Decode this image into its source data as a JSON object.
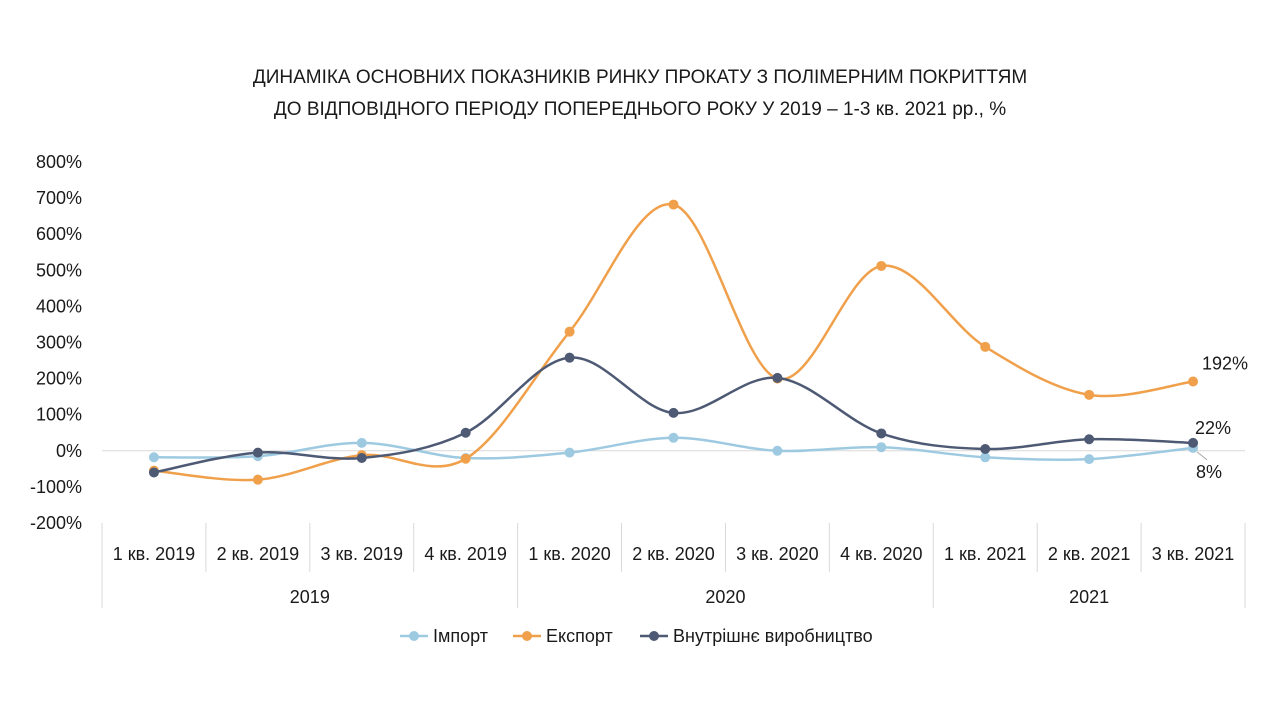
{
  "colors": {
    "import": "#9ecae1",
    "export": "#f0a04b",
    "domestic": "#4e5a74",
    "axis": "#d9d9d9",
    "text": "#1a1a1a"
  },
  "chart_data": {
    "type": "line",
    "smooth": true,
    "title": [
      "ДИНАМІКА ОСНОВНИХ ПОКАЗНИКІВ РИНКУ ПРОКАТУ З ПОЛІМЕРНИМ ПОКРИТТЯМ",
      "ДО ВІДПОВІДНОГО ПЕРІОДУ ПОПЕРЕДНЬОГО РОКУ У 2019 – 1-3 кв. 2021 рр., %"
    ],
    "categories": [
      "1 кв. 2019",
      "2 кв. 2019",
      "3 кв. 2019",
      "4 кв. 2019",
      "1 кв. 2020",
      "2 кв. 2020",
      "3 кв. 2020",
      "4 кв. 2020",
      "1 кв. 2021",
      "2 кв. 2021",
      "3 кв. 2021"
    ],
    "groups": [
      {
        "label": "2019",
        "span": 4
      },
      {
        "label": "2020",
        "span": 4
      },
      {
        "label": "2021",
        "span": 3
      }
    ],
    "ylim": [
      -200,
      800
    ],
    "yticks": [
      -200,
      -100,
      0,
      100,
      200,
      300,
      400,
      500,
      600,
      700,
      800
    ],
    "ytick_labels": [
      "-200%",
      "-100%",
      "0%",
      "100%",
      "200%",
      "300%",
      "400%",
      "500%",
      "600%",
      "700%",
      "800%"
    ],
    "grid": false,
    "legend_position": "bottom",
    "series": [
      {
        "key": "import",
        "name": "Імпорт",
        "values": [
          -18,
          -15,
          22,
          -20,
          -5,
          36,
          0,
          10,
          -18,
          -23,
          8
        ],
        "end_label": "8%"
      },
      {
        "key": "export",
        "name": "Експорт",
        "values": [
          -55,
          -80,
          -12,
          -22,
          330,
          682,
          200,
          512,
          288,
          155,
          192
        ],
        "end_label": "192%"
      },
      {
        "key": "domestic",
        "name": "Внутрішнє виробництво",
        "values": [
          -60,
          -5,
          -20,
          50,
          258,
          105,
          202,
          48,
          5,
          32,
          22
        ],
        "end_label": "22%"
      }
    ]
  }
}
